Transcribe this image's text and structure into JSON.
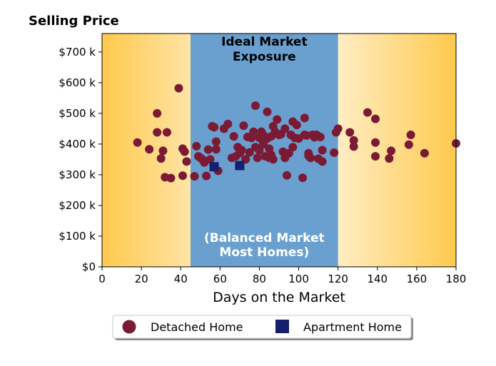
{
  "chart_data": {
    "type": "scatter",
    "title": "Selling Price",
    "xlabel": "Days on the Market",
    "ylabel": "",
    "xlim": [
      0,
      180
    ],
    "ylim": [
      0,
      760000
    ],
    "xticks": [
      0,
      20,
      40,
      60,
      80,
      100,
      120,
      140,
      160,
      180
    ],
    "yticks": [
      0,
      100000,
      200000,
      300000,
      400000,
      500000,
      600000,
      700000
    ],
    "xtick_labels": [
      "0",
      "20",
      "40",
      "60",
      "80",
      "100",
      "120",
      "140",
      "160",
      "180"
    ],
    "ytick_labels": [
      "$0",
      "$100 k",
      "$200 k",
      "$300 k",
      "$400 k",
      "$500 k",
      "$600 k",
      "$700 k"
    ],
    "grid": false,
    "legend_placement": "bottom-center",
    "band": {
      "x_range": [
        45,
        120
      ],
      "color": "#6aa0cf",
      "top_label_line1": "Ideal Market",
      "top_label_line2": "Exposure",
      "bottom_label_line1": "(Balanced Market",
      "bottom_label_line2": "Most Homes)"
    },
    "background_gradient": {
      "edge_color": "#ffc94d",
      "center_color": "#ffffff"
    },
    "series": [
      {
        "name": "Detached Home",
        "marker": "circle",
        "color": "#7a1a35",
        "points": [
          [
            18,
            405000
          ],
          [
            24,
            383000
          ],
          [
            28,
            500000
          ],
          [
            28,
            438000
          ],
          [
            30,
            353000
          ],
          [
            31,
            378000
          ],
          [
            32,
            292000
          ],
          [
            33,
            438000
          ],
          [
            35,
            289000
          ],
          [
            39,
            582000
          ],
          [
            41,
            297000
          ],
          [
            41,
            385000
          ],
          [
            42,
            375000
          ],
          [
            43,
            343000
          ],
          [
            47,
            295000
          ],
          [
            48,
            393000
          ],
          [
            49,
            360000
          ],
          [
            50,
            355000
          ],
          [
            51,
            350000
          ],
          [
            52,
            340000
          ],
          [
            53,
            296000
          ],
          [
            54,
            382000
          ],
          [
            55,
            350000
          ],
          [
            56,
            458000
          ],
          [
            57,
            455000
          ],
          [
            58,
            383000
          ],
          [
            58,
            408000
          ],
          [
            59,
            313000
          ],
          [
            62,
            450000
          ],
          [
            64,
            465000
          ],
          [
            66,
            355000
          ],
          [
            67,
            425000
          ],
          [
            68,
            360000
          ],
          [
            69,
            390000
          ],
          [
            70,
            370000
          ],
          [
            71,
            380000
          ],
          [
            72,
            460000
          ],
          [
            73,
            350000
          ],
          [
            74,
            423000
          ],
          [
            75,
            373000
          ],
          [
            76,
            420000
          ],
          [
            77,
            440000
          ],
          [
            78,
            525000
          ],
          [
            78,
            390000
          ],
          [
            79,
            355000
          ],
          [
            80,
            420000
          ],
          [
            80,
            380000
          ],
          [
            81,
            440000
          ],
          [
            82,
            430000
          ],
          [
            82,
            400000
          ],
          [
            83,
            360000
          ],
          [
            84,
            418000
          ],
          [
            84,
            505000
          ],
          [
            85,
            385000
          ],
          [
            85,
            355000
          ],
          [
            86,
            425000
          ],
          [
            86,
            365000
          ],
          [
            87,
            458000
          ],
          [
            87,
            350000
          ],
          [
            88,
            440000
          ],
          [
            89,
            480000
          ],
          [
            90,
            430000
          ],
          [
            91,
            432000
          ],
          [
            92,
            375000
          ],
          [
            93,
            355000
          ],
          [
            93,
            450000
          ],
          [
            94,
            298000
          ],
          [
            95,
            370000
          ],
          [
            96,
            430000
          ],
          [
            97,
            390000
          ],
          [
            97,
            473000
          ],
          [
            98,
            420000
          ],
          [
            99,
            462000
          ],
          [
            100,
            418000
          ],
          [
            102,
            290000
          ],
          [
            103,
            430000
          ],
          [
            103,
            485000
          ],
          [
            104,
            428000
          ],
          [
            105,
            370000
          ],
          [
            105,
            362000
          ],
          [
            106,
            355000
          ],
          [
            107,
            430000
          ],
          [
            108,
            422000
          ],
          [
            109,
            430000
          ],
          [
            110,
            352000
          ],
          [
            111,
            423000
          ],
          [
            112,
            380000
          ],
          [
            112,
            343000
          ],
          [
            118,
            372000
          ],
          [
            119,
            438000
          ],
          [
            120,
            450000
          ],
          [
            126,
            438000
          ],
          [
            128,
            412000
          ],
          [
            128,
            392000
          ],
          [
            135,
            503000
          ],
          [
            139,
            482000
          ],
          [
            139,
            405000
          ],
          [
            139,
            360000
          ],
          [
            146,
            353000
          ],
          [
            147,
            378000
          ],
          [
            156,
            398000
          ],
          [
            157,
            430000
          ],
          [
            164,
            370000
          ],
          [
            180,
            402000
          ]
        ]
      },
      {
        "name": "Apartment Home",
        "marker": "square",
        "color": "#14206e",
        "points": [
          [
            57,
            326000
          ],
          [
            70,
            330000
          ]
        ]
      }
    ]
  }
}
